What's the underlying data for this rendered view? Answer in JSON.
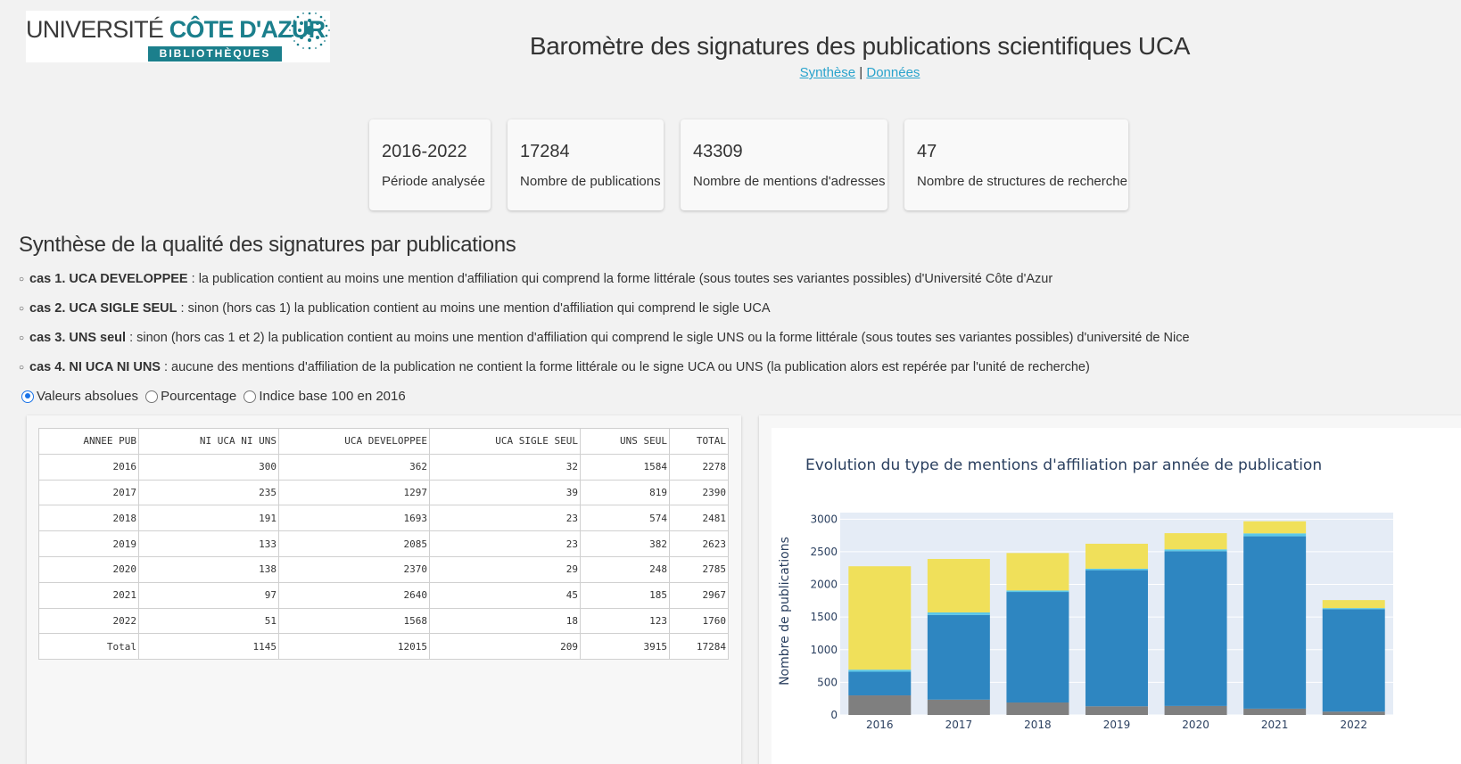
{
  "logo": {
    "universite": "UNIVERSITÉ",
    "cote_azur": "CÔTE D'AZUR",
    "bibliotheques": "BIBLIOTHÈQUES"
  },
  "header": {
    "title": "Baromètre des signatures des publications scientifiques UCA"
  },
  "nav": {
    "synthese": "Synthèse",
    "separator": "|",
    "donnees": "Données"
  },
  "cards": [
    {
      "value": "2016-2022",
      "label": "Période analysée"
    },
    {
      "value": "17284",
      "label": "Nombre de publications"
    },
    {
      "value": "43309",
      "label": "Nombre de mentions d'adresses"
    },
    {
      "value": "47",
      "label": "Nombre de structures de recherche"
    }
  ],
  "synthesis": {
    "title": "Synthèse de la qualité des signatures par publications",
    "cases": [
      {
        "label": "cas 1. UCA DEVELOPPEE",
        "text": " : la publication contient au moins une mention d'affiliation qui comprend la forme littérale (sous toutes ses variantes possibles) d'Université Côte d'Azur"
      },
      {
        "label": "cas 2. UCA SIGLE SEUL",
        "text": " : sinon (hors cas 1) la publication contient au moins une mention d'affiliation qui comprend le sigle UCA"
      },
      {
        "label": "cas 3. UNS seul",
        "text": " : sinon (hors cas 1 et 2) la publication contient au moins une mention d'affiliation qui comprend le sigle UNS ou la forme littérale (sous toutes ses variantes possibles) d'université de Nice"
      },
      {
        "label": "cas 4. NI UCA NI UNS",
        "text": " : aucune des mentions d'affiliation de la publication ne contient la forme littérale ou le signe UCA ou UNS (la publication alors est repérée par l'unité de recherche)"
      }
    ]
  },
  "radios": [
    {
      "label": "Valeurs absolues",
      "checked": true
    },
    {
      "label": "Pourcentage",
      "checked": false
    },
    {
      "label": "Indice base 100 en 2016",
      "checked": false
    }
  ],
  "table": {
    "headers": [
      "ANNEE PUB",
      "NI UCA NI UNS",
      "UCA DEVELOPPEE",
      "UCA SIGLE SEUL",
      "UNS SEUL",
      "TOTAL"
    ],
    "rows": [
      [
        "2016",
        "300",
        "362",
        "32",
        "1584",
        "2278"
      ],
      [
        "2017",
        "235",
        "1297",
        "39",
        "819",
        "2390"
      ],
      [
        "2018",
        "191",
        "1693",
        "23",
        "574",
        "2481"
      ],
      [
        "2019",
        "133",
        "2085",
        "23",
        "382",
        "2623"
      ],
      [
        "2020",
        "138",
        "2370",
        "29",
        "248",
        "2785"
      ],
      [
        "2021",
        "97",
        "2640",
        "45",
        "185",
        "2967"
      ],
      [
        "2022",
        "51",
        "1568",
        "18",
        "123",
        "1760"
      ],
      [
        "Total",
        "1145",
        "12015",
        "209",
        "3915",
        "17284"
      ]
    ]
  },
  "chart_data": {
    "type": "bar",
    "stacked": true,
    "title": "Evolution du type de mentions d'affiliation par année de publication",
    "ylabel": "Nombre de publications",
    "xlabel": "",
    "categories": [
      "2016",
      "2017",
      "2018",
      "2019",
      "2020",
      "2021",
      "2022"
    ],
    "yticks": [
      0,
      500,
      1000,
      1500,
      2000,
      2500,
      3000
    ],
    "ylim": [
      0,
      3100
    ],
    "series": [
      {
        "values": [
          300,
          235,
          191,
          133,
          138,
          97,
          51
        ],
        "color": "#7f7f7f"
      },
      {
        "values": [
          362,
          1297,
          1693,
          2085,
          2370,
          2640,
          1568
        ],
        "color": "#2e86c1"
      },
      {
        "values": [
          32,
          39,
          23,
          23,
          29,
          45,
          18
        ],
        "color": "#5bc8e8"
      },
      {
        "values": [
          1584,
          819,
          574,
          382,
          248,
          185,
          123
        ],
        "color": "#f0e05a"
      }
    ]
  }
}
